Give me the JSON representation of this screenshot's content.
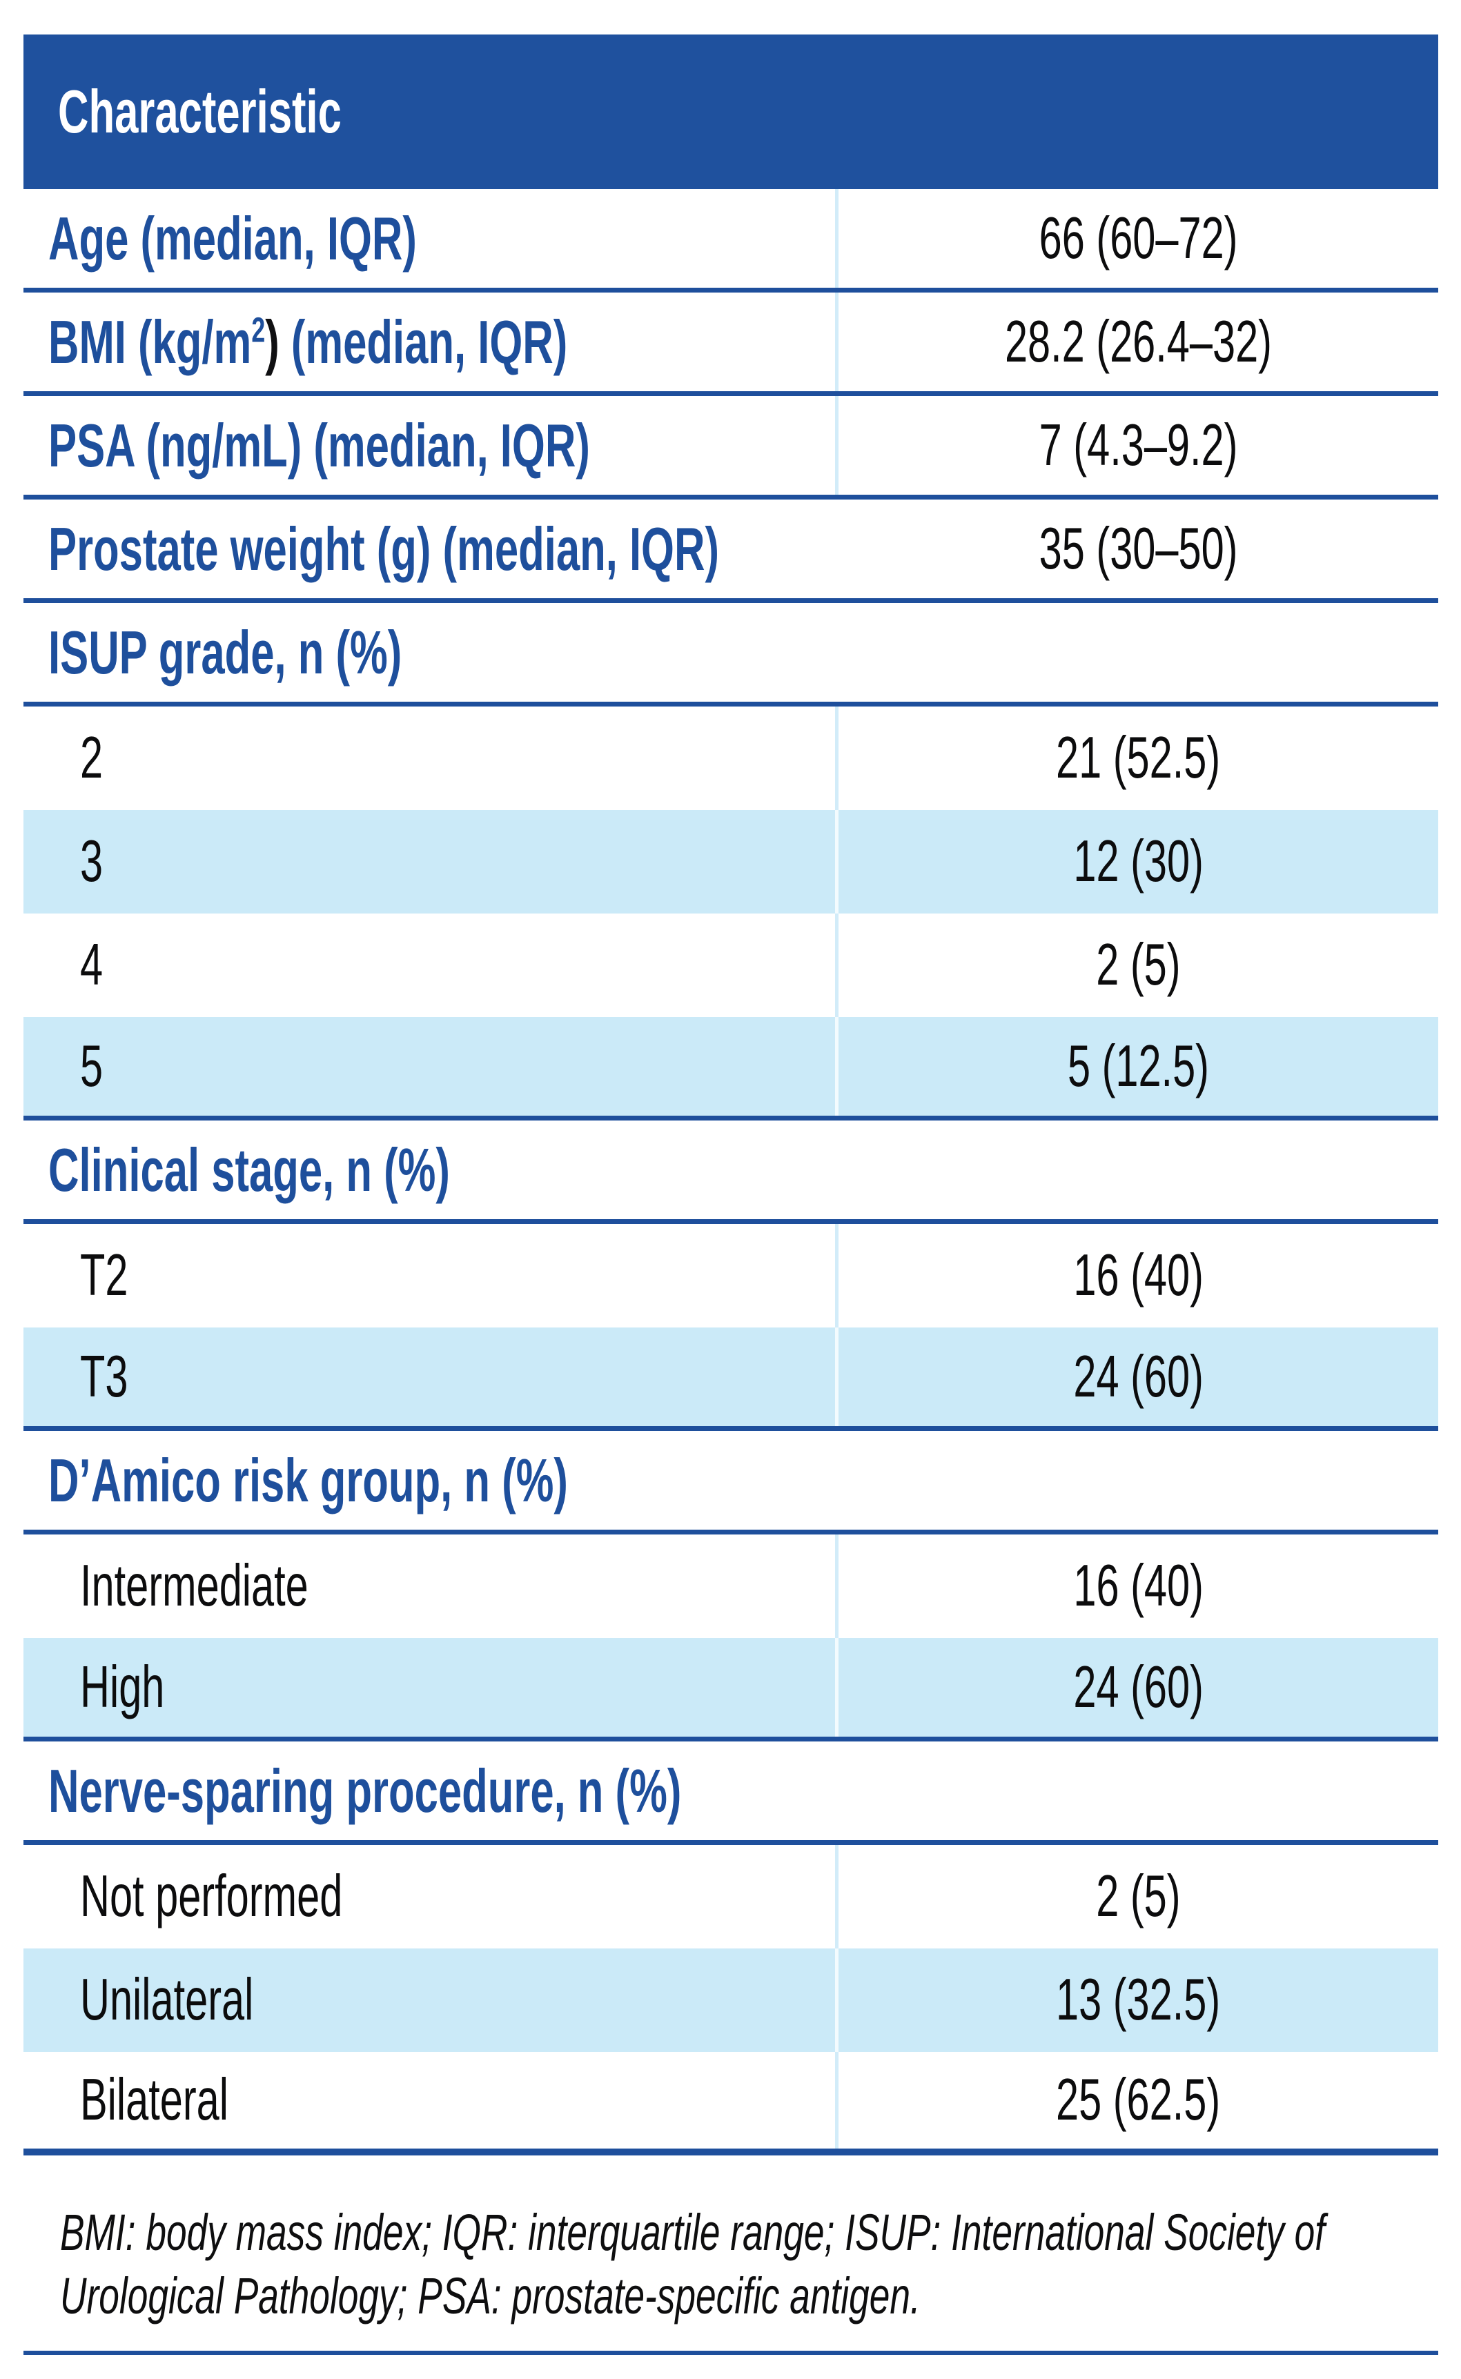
{
  "colors": {
    "header_bg": "#1f519e",
    "rule_blue": "#1e4f9c",
    "label_blue": "#1e4f9c",
    "row_alt_bg": "#cbeaf8",
    "column_divider_on_white": "#d2ecf9",
    "column_divider_on_tint": "#f3fbfe",
    "body_text": "#0c0c0d"
  },
  "table": {
    "header": {
      "label": "Characteristic"
    },
    "rows": [
      {
        "kind": "measure",
        "label": "Age (median, IQR)",
        "value": "66 (60–72)"
      },
      {
        "kind": "measure",
        "label_pre": "BMI (kg/m",
        "label_sup": "2",
        "label_paren": ")",
        "label_post": " (median, IQR)",
        "value": "28.2 (26.4–32)"
      },
      {
        "kind": "measure",
        "label": "PSA (ng/mL) (median, IQR)",
        "value": "7 (4.3–9.2)"
      },
      {
        "kind": "measure",
        "label": "Prostate weight (g) (median, IQR)",
        "value": "35 (30–50)"
      },
      {
        "kind": "section",
        "label": "ISUP grade, n (%)"
      },
      {
        "kind": "item",
        "label": "2",
        "value": "21 (52.5)",
        "tint": false
      },
      {
        "kind": "item",
        "label": "3",
        "value": "12 (30)",
        "tint": true
      },
      {
        "kind": "item",
        "label": "4",
        "value": "2 (5)",
        "tint": false
      },
      {
        "kind": "item",
        "label": "5",
        "value": "5 (12.5)",
        "tint": true
      },
      {
        "kind": "section",
        "label": "Clinical stage, n (%)"
      },
      {
        "kind": "item",
        "label": "T2",
        "value": "16 (40)",
        "tint": false
      },
      {
        "kind": "item",
        "label": "T3",
        "value": "24 (60)",
        "tint": true
      },
      {
        "kind": "section",
        "label": "D’Amico risk group, n (%)"
      },
      {
        "kind": "item",
        "label": "Intermediate",
        "value": "16 (40)",
        "tint": false
      },
      {
        "kind": "item",
        "label": "High",
        "value": "24 (60)",
        "tint": true
      },
      {
        "kind": "section",
        "label": "Nerve-sparing procedure, n (%)"
      },
      {
        "kind": "item",
        "label": "Not performed",
        "value": "2 (5)",
        "tint": false
      },
      {
        "kind": "item",
        "label": "Unilateral",
        "value": "13 (32.5)",
        "tint": true
      },
      {
        "kind": "item",
        "label": "Bilateral",
        "value": "25 (62.5)",
        "tint": false
      }
    ],
    "footnote": "BMI: body mass index; IQR: interquartile range; ISUP: International Society of Urological Pathology; PSA: prostate-specific antigen."
  }
}
